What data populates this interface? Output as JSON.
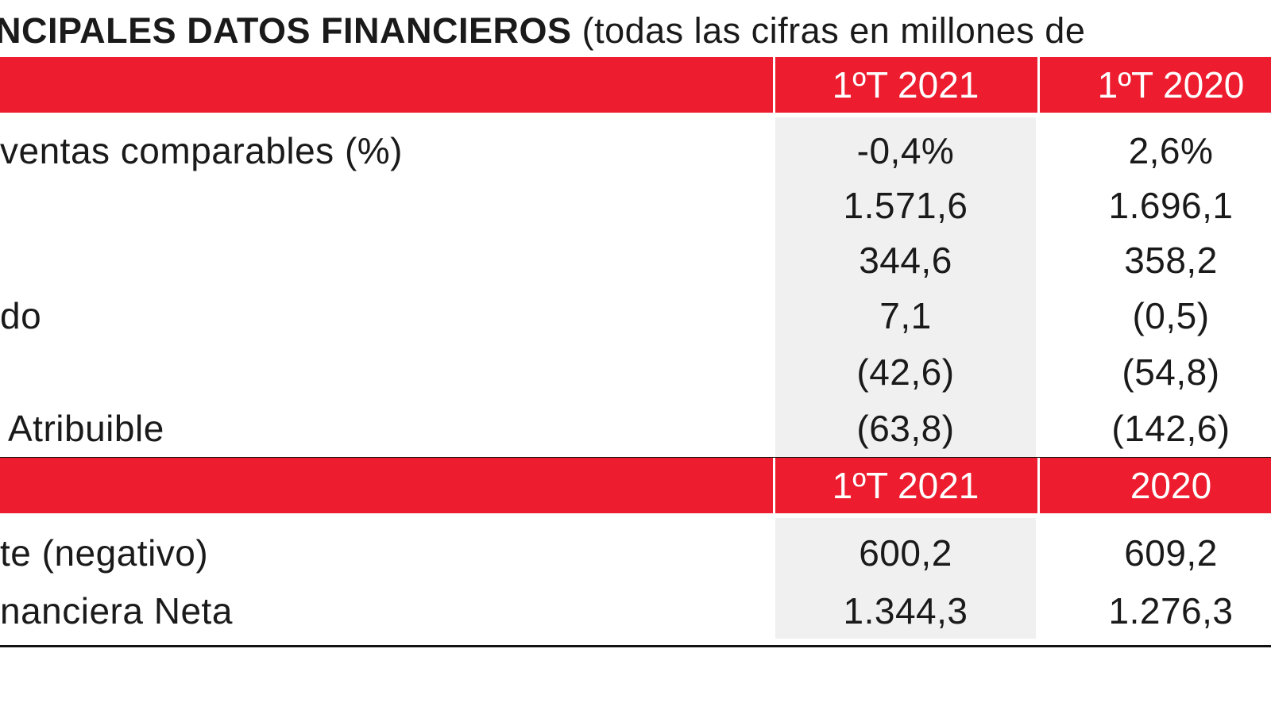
{
  "title": {
    "bold": "NCIPALES DATOS FINANCIEROS",
    "normal": "(todas las cifras en millones de"
  },
  "colors": {
    "header_band": "#ed1c2e",
    "shaded_column": "#f0f0f0",
    "rule": "#111111"
  },
  "section1": {
    "headers": [
      "1ºT 2021",
      "1ºT 2020"
    ],
    "rows": [
      {
        "label": "ventas comparables (%)",
        "values": [
          "-0,4%",
          "2,6%"
        ]
      },
      {
        "label": "",
        "values": [
          "1.571,6",
          "1.696,1"
        ]
      },
      {
        "label": "",
        "values": [
          "344,6",
          "358,2"
        ]
      },
      {
        "label": "do",
        "values": [
          "7,1",
          "(0,5)"
        ]
      },
      {
        "label": "",
        "values": [
          "(42,6)",
          "(54,8)"
        ]
      },
      {
        "label": "Atribuible",
        "values": [
          "(63,8)",
          "(142,6)"
        ]
      }
    ]
  },
  "section2": {
    "headers": [
      "1ºT 2021",
      "2020"
    ],
    "rows": [
      {
        "label": "te (negativo)",
        "values": [
          "600,2",
          "609,2"
        ]
      },
      {
        "label": "nanciera Neta",
        "values": [
          "1.344,3",
          "1.276,3"
        ]
      }
    ]
  }
}
